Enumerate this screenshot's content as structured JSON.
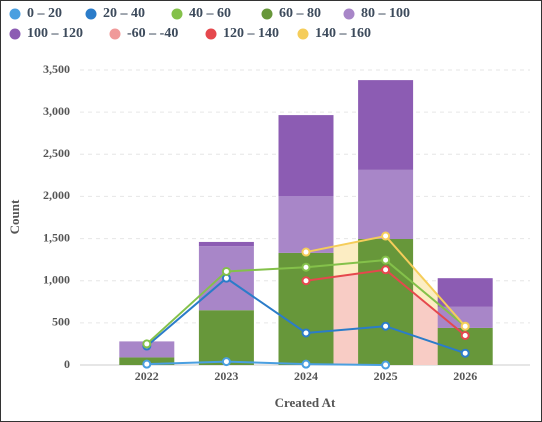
{
  "chart_data": {
    "type": "combo",
    "x_label": "Created At",
    "y_label": "Count",
    "categories": [
      "2022",
      "2023",
      "2024",
      "2025",
      "2026"
    ],
    "ylim": [
      0,
      3500
    ],
    "yticks": [
      0,
      500,
      {
        "value": 1000,
        "label": "1,000"
      },
      {
        "value": 1500,
        "label": "1,500"
      },
      {
        "value": 2000,
        "label": "2,000"
      },
      {
        "value": 2500,
        "label": "2,500"
      },
      {
        "value": 3000,
        "label": "3,000"
      },
      {
        "value": 3500,
        "label": "3,500"
      }
    ],
    "grid": true,
    "series": [
      {
        "name": "0 – 20",
        "color": "#4a9fe0",
        "kind": "line",
        "values": [
          10,
          40,
          10,
          0,
          null
        ]
      },
      {
        "name": "20 – 40",
        "color": "#2b7cc9",
        "kind": "line",
        "values": [
          225,
          1030,
          380,
          460,
          140
        ]
      },
      {
        "name": "40 – 60",
        "color": "#84c14a",
        "kind": "line",
        "values": [
          250,
          1110,
          1160,
          1245,
          460
        ]
      },
      {
        "name": "60 – 80",
        "color": "#67973a",
        "kind": "bar",
        "values": [
          90,
          650,
          1330,
          1495,
          440
        ]
      },
      {
        "name": "80 – 100",
        "color": "#a886c8",
        "kind": "bar",
        "values": [
          190,
          760,
          675,
          820,
          250
        ]
      },
      {
        "name": "100 – 120",
        "color": "#8c5cb3",
        "kind": "bar",
        "values": [
          0,
          50,
          960,
          1065,
          340
        ]
      },
      {
        "name": "-60 – -40",
        "color": "#f09a9a",
        "kind": "bar",
        "values": [
          0,
          0,
          0,
          0,
          0
        ]
      },
      {
        "name": "120 – 140",
        "color": "#e5484d",
        "kind": "area",
        "fill": "#f7c6c6",
        "values": [
          null,
          null,
          1000,
          1130,
          350
        ]
      },
      {
        "name": "140 – 160",
        "color": "#f5cd5a",
        "kind": "area",
        "fill": "#fbeab8",
        "values": [
          null,
          null,
          1340,
          1530,
          460
        ]
      }
    ]
  }
}
